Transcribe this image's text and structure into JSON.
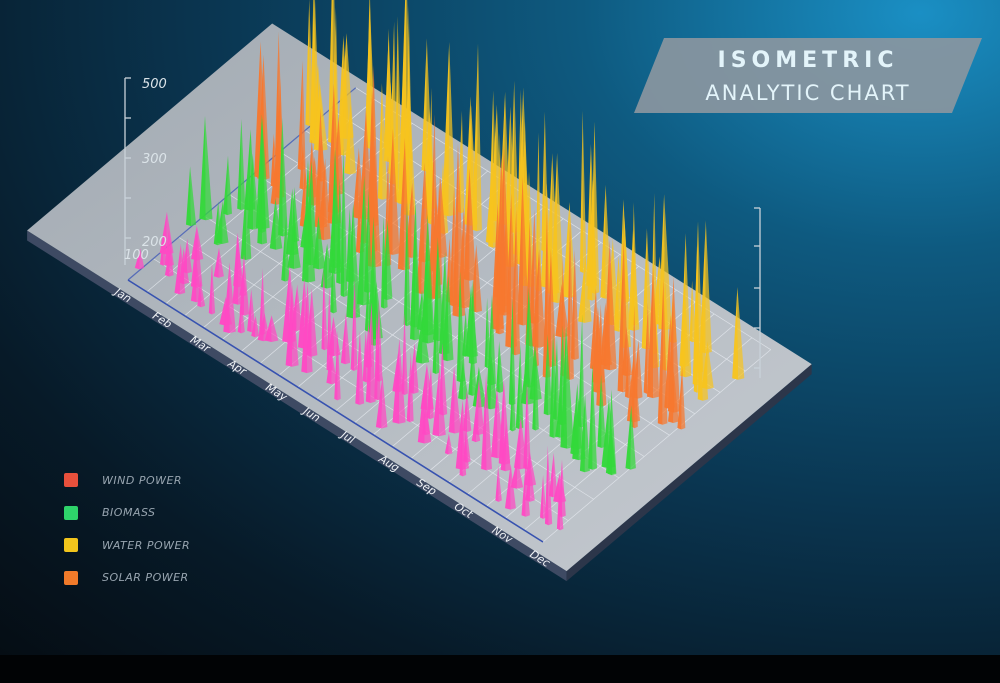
{
  "title": {
    "line1": "ISOMETRIC",
    "line2": "ANALYTIC CHART"
  },
  "colors": {
    "wind": "#ff49c4",
    "biomass": "#33d83a",
    "water": "#f7c41e",
    "solar": "#f7782f"
  },
  "legend": [
    {
      "label": "WIND POWER",
      "swatch": "#e8503c"
    },
    {
      "label": "BIOMASS",
      "swatch": "#2ed36a"
    },
    {
      "label": "WATER POWER",
      "swatch": "#f2c51c"
    },
    {
      "label": "SOLAR POWER",
      "swatch": "#f07a2a"
    }
  ],
  "chart_data": {
    "type": "area",
    "categories": [
      "Jan",
      "Feb",
      "Mar",
      "Apr",
      "May",
      "Jun",
      "Jul",
      "Aug",
      "Sep",
      "Oct",
      "Nov",
      "Dec"
    ],
    "y_ticks_left": [
      "500",
      "300",
      "200",
      "100"
    ],
    "ylim": [
      0,
      500
    ],
    "grid": true,
    "legend_position": "bottom-left",
    "series": [
      {
        "name": "WIND POWER",
        "values": [
          100,
          110,
          150,
          140,
          210,
          190,
          260,
          180,
          120,
          220,
          130,
          200
        ]
      },
      {
        "name": "BIOMASS",
        "values": [
          270,
          290,
          280,
          300,
          320,
          270,
          260,
          240,
          250,
          280,
          260,
          240
        ]
      },
      {
        "name": "SOLAR POWER",
        "values": [
          300,
          310,
          320,
          340,
          360,
          330,
          380,
          360,
          330,
          350,
          310,
          300
        ]
      },
      {
        "name": "WATER POWER",
        "values": [
          380,
          460,
          420,
          470,
          430,
          390,
          420,
          380,
          330,
          340,
          360,
          320
        ]
      }
    ]
  }
}
